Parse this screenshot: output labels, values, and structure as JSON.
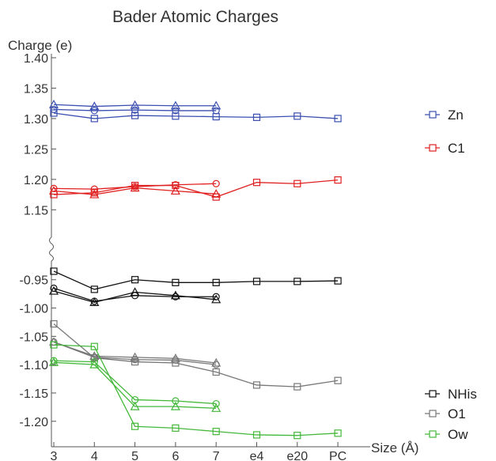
{
  "chart_data": {
    "type": "line",
    "title": "Bader Atomic Charges",
    "ylabel": "Charge (e)",
    "xlabel": "Size (Å)",
    "x_categories": [
      "3",
      "4",
      "5",
      "6",
      "7",
      "e4",
      "e20",
      "PC"
    ],
    "upper_axis": {
      "ylim": [
        1.14,
        1.4
      ],
      "ticks": [
        "1.40",
        "1.35",
        "1.30",
        "1.25",
        "1.20",
        "1.15"
      ]
    },
    "lower_axis": {
      "ylim": [
        -1.245,
        -0.935
      ],
      "ticks": [
        "-0.95",
        "-1.00",
        "-1.05",
        "-1.10",
        "-1.15",
        "-1.20"
      ]
    },
    "axis_break": true,
    "legend_placement": "right",
    "series": [
      {
        "name": "Zn",
        "color": "#3b4fb0",
        "panel": "upper",
        "lines": [
          {
            "marker": "square",
            "values": [
              1.309,
              1.3,
              1.305,
              1.304,
              1.303,
              1.302,
              1.304,
              1.3
            ]
          },
          {
            "marker": "circle",
            "values": [
              1.315,
              1.313,
              1.314,
              1.313,
              1.313,
              null,
              null,
              null
            ]
          },
          {
            "marker": "triangle",
            "values": [
              1.323,
              1.32,
              1.322,
              1.321,
              1.321,
              null,
              null,
              null
            ]
          }
        ]
      },
      {
        "name": "C1",
        "color": "#e02020",
        "panel": "upper",
        "lines": [
          {
            "marker": "square",
            "values": [
              1.175,
              1.178,
              1.19,
              1.19,
              1.171,
              1.195,
              1.193,
              1.199
            ]
          },
          {
            "marker": "circle",
            "values": [
              1.185,
              1.184,
              1.188,
              1.191,
              1.193,
              null,
              null,
              null
            ]
          },
          {
            "marker": "triangle",
            "values": [
              1.181,
              1.175,
              1.186,
              1.181,
              1.176,
              null,
              null,
              null
            ]
          }
        ]
      },
      {
        "name": "NHis",
        "color": "#111111",
        "panel": "lower",
        "lines": [
          {
            "marker": "square",
            "values": [
              -0.935,
              -0.967,
              -0.95,
              -0.955,
              -0.955,
              -0.953,
              -0.953,
              -0.952
            ]
          },
          {
            "marker": "circle",
            "values": [
              -0.965,
              -0.988,
              -0.978,
              -0.98,
              -0.98,
              null,
              null,
              null
            ]
          },
          {
            "marker": "triangle",
            "values": [
              -0.97,
              -0.99,
              -0.972,
              -0.978,
              -0.985,
              null,
              null,
              null
            ]
          }
        ]
      },
      {
        "name": "O1",
        "color": "#777777",
        "panel": "lower",
        "lines": [
          {
            "marker": "square",
            "values": [
              -1.028,
              -1.088,
              -1.095,
              -1.097,
              -1.113,
              -1.136,
              -1.139,
              -1.128
            ]
          },
          {
            "marker": "circle",
            "values": [
              -1.06,
              -1.087,
              -1.091,
              -1.092,
              -1.1,
              null,
              null,
              null
            ]
          },
          {
            "marker": "triangle",
            "values": [
              -1.06,
              -1.085,
              -1.087,
              -1.089,
              -1.097,
              null,
              null,
              null
            ]
          }
        ]
      },
      {
        "name": "Ow",
        "color": "#44b83a",
        "panel": "lower",
        "lines": [
          {
            "marker": "square",
            "values": [
              -1.065,
              -1.068,
              -1.209,
              -1.212,
              -1.218,
              -1.224,
              -1.225,
              -1.221
            ]
          },
          {
            "marker": "circle",
            "values": [
              -1.093,
              -1.095,
              -1.162,
              -1.164,
              -1.169,
              null,
              null,
              null
            ]
          },
          {
            "marker": "triangle",
            "values": [
              -1.096,
              -1.1,
              -1.174,
              -1.174,
              -1.177,
              null,
              null,
              null
            ]
          }
        ]
      }
    ]
  }
}
